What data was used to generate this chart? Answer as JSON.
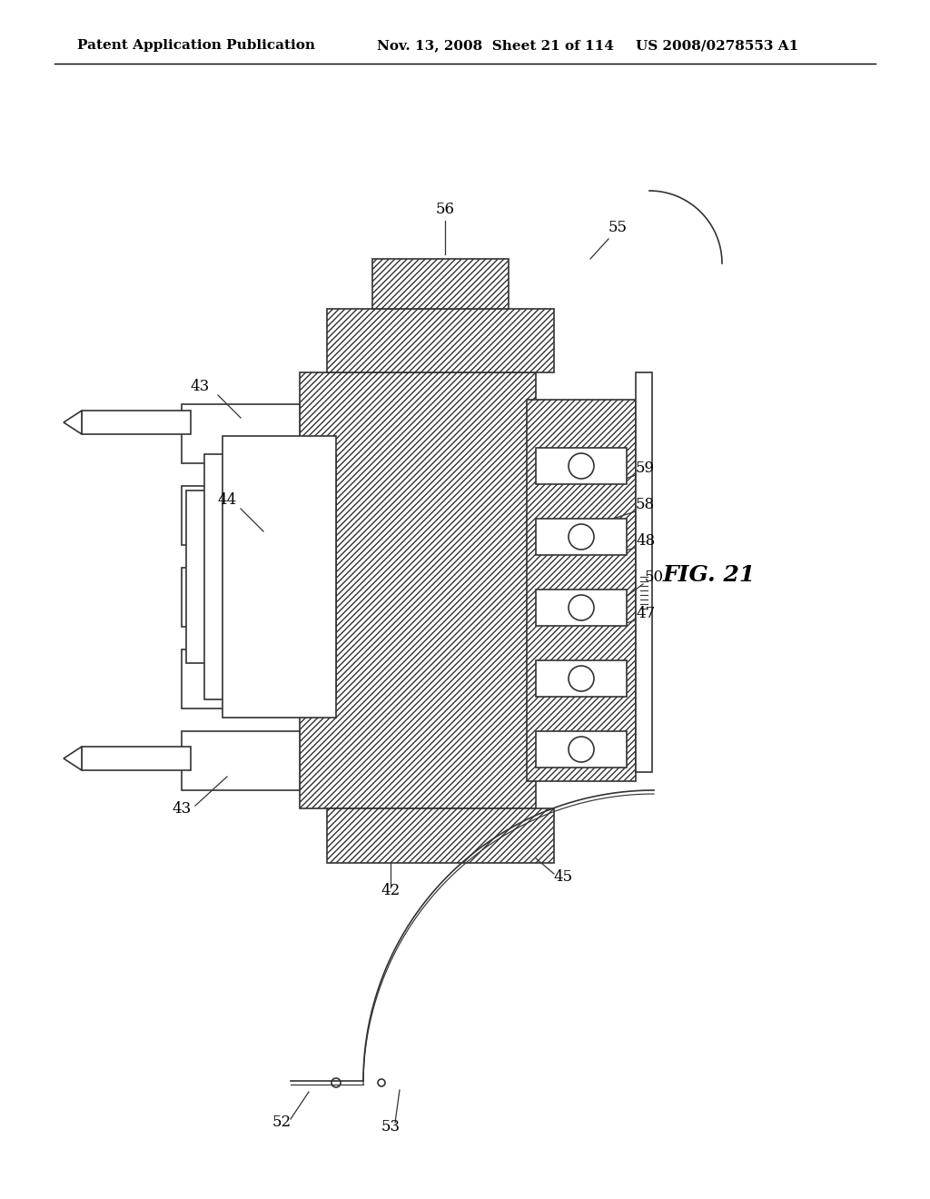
{
  "header_left": "Patent Application Publication",
  "header_mid": "Nov. 13, 2008  Sheet 21 of 114",
  "header_right": "US 2008/0278553 A1",
  "fig_label": "FIG. 21",
  "labels": {
    "43_top": "43",
    "43_bot": "43",
    "44": "44",
    "45": "45",
    "47": "47",
    "48": "48",
    "50": "50",
    "52": "52",
    "53": "53",
    "55": "55",
    "56": "56",
    "58": "58",
    "59": "59",
    "42": "42"
  },
  "bg_color": "#ffffff",
  "line_color": "#333333",
  "hatch_color": "#555555",
  "hatch_pattern": "////",
  "header_fontsize": 11,
  "label_fontsize": 12,
  "fig_label_fontsize": 18
}
